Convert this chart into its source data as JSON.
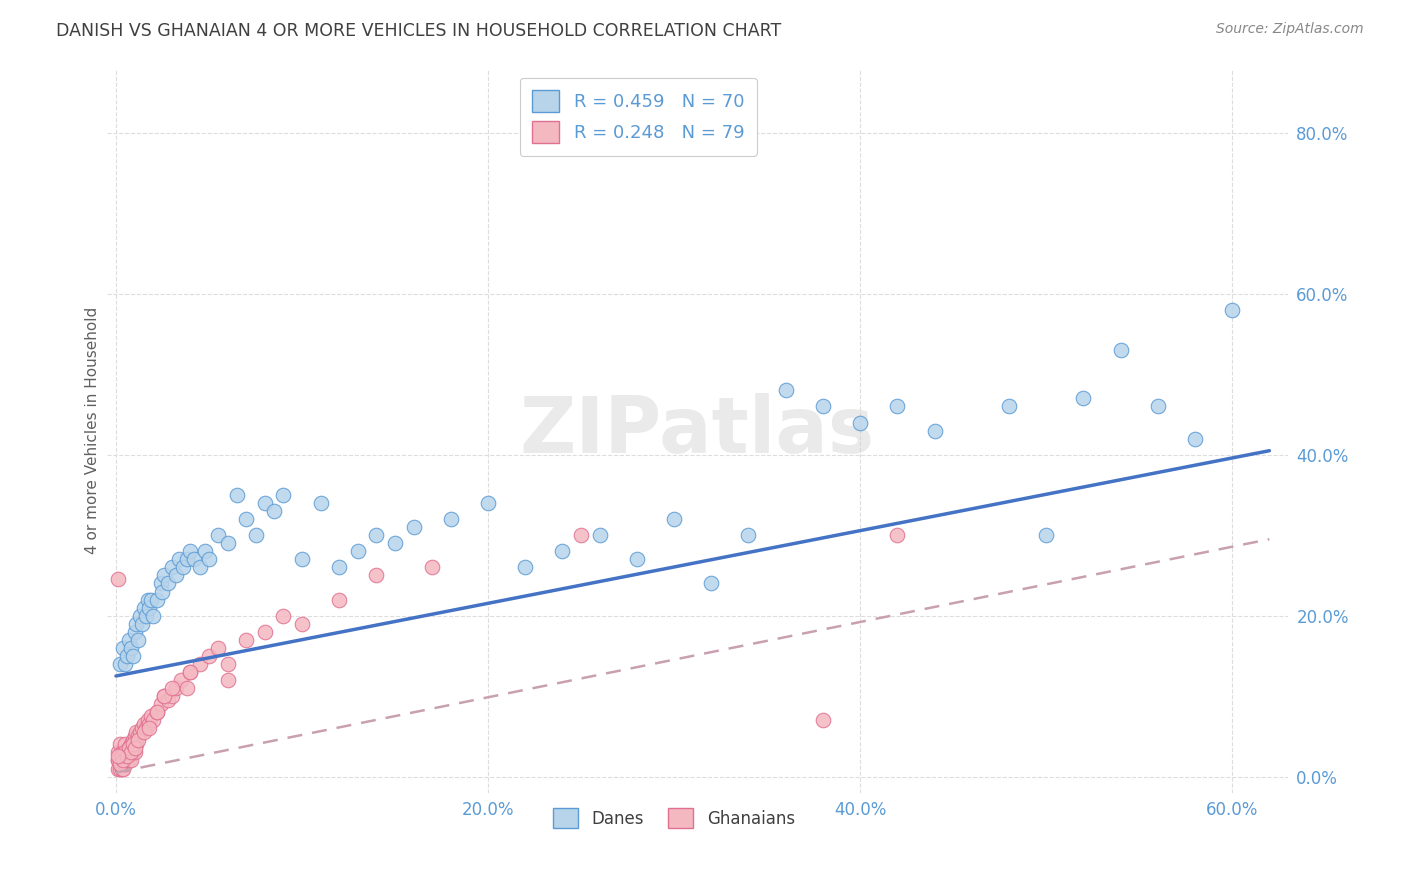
{
  "title": "DANISH VS GHANAIAN 4 OR MORE VEHICLES IN HOUSEHOLD CORRELATION CHART",
  "source": "Source: ZipAtlas.com",
  "ylabel": "4 or more Vehicles in Household",
  "xlim": [
    -0.005,
    0.63
  ],
  "ylim": [
    -0.02,
    0.88
  ],
  "dane_color": "#b8d4ea",
  "dane_edge_color": "#5b9bd5",
  "ghanaian_color": "#f4b8c1",
  "ghanaian_edge_color": "#e07090",
  "dane_line_color": "#4472c4",
  "ghanaian_line_color": "#c0a0a8",
  "dane_R": 0.459,
  "dane_N": 70,
  "ghanaian_R": 0.248,
  "ghanaian_N": 79,
  "watermark": "ZIPatlas",
  "background_color": "#ffffff",
  "grid_color": "#dddddd",
  "title_color": "#404040",
  "tick_color": "#5b9bd5",
  "axis_label_color": "#606060",
  "danes_x": [
    0.002,
    0.004,
    0.005,
    0.006,
    0.007,
    0.008,
    0.009,
    0.01,
    0.011,
    0.012,
    0.013,
    0.014,
    0.015,
    0.016,
    0.017,
    0.018,
    0.019,
    0.02,
    0.022,
    0.024,
    0.025,
    0.026,
    0.028,
    0.03,
    0.032,
    0.034,
    0.036,
    0.038,
    0.04,
    0.042,
    0.045,
    0.048,
    0.05,
    0.055,
    0.06,
    0.065,
    0.07,
    0.075,
    0.08,
    0.085,
    0.09,
    0.1,
    0.11,
    0.12,
    0.13,
    0.14,
    0.15,
    0.16,
    0.18,
    0.2,
    0.22,
    0.24,
    0.26,
    0.28,
    0.3,
    0.32,
    0.34,
    0.36,
    0.38,
    0.4,
    0.42,
    0.44,
    0.48,
    0.5,
    0.52,
    0.54,
    0.56,
    0.58,
    0.005,
    0.6
  ],
  "danes_y": [
    0.14,
    0.16,
    0.14,
    0.15,
    0.17,
    0.16,
    0.15,
    0.18,
    0.19,
    0.17,
    0.2,
    0.19,
    0.21,
    0.2,
    0.22,
    0.21,
    0.22,
    0.2,
    0.22,
    0.24,
    0.23,
    0.25,
    0.24,
    0.26,
    0.25,
    0.27,
    0.26,
    0.27,
    0.28,
    0.27,
    0.26,
    0.28,
    0.27,
    0.3,
    0.29,
    0.35,
    0.32,
    0.3,
    0.34,
    0.33,
    0.35,
    0.27,
    0.34,
    0.26,
    0.28,
    0.3,
    0.29,
    0.31,
    0.32,
    0.34,
    0.26,
    0.28,
    0.3,
    0.27,
    0.32,
    0.24,
    0.3,
    0.48,
    0.46,
    0.44,
    0.46,
    0.43,
    0.46,
    0.3,
    0.47,
    0.53,
    0.46,
    0.42,
    0.025,
    0.58
  ],
  "ghanaians_x": [
    0.001,
    0.001,
    0.001,
    0.002,
    0.002,
    0.002,
    0.003,
    0.003,
    0.003,
    0.004,
    0.004,
    0.004,
    0.005,
    0.005,
    0.005,
    0.006,
    0.006,
    0.007,
    0.007,
    0.008,
    0.008,
    0.009,
    0.009,
    0.01,
    0.01,
    0.011,
    0.011,
    0.012,
    0.013,
    0.014,
    0.015,
    0.016,
    0.017,
    0.018,
    0.019,
    0.02,
    0.022,
    0.024,
    0.026,
    0.028,
    0.03,
    0.032,
    0.035,
    0.038,
    0.04,
    0.045,
    0.05,
    0.055,
    0.06,
    0.07,
    0.08,
    0.09,
    0.1,
    0.12,
    0.14,
    0.001,
    0.002,
    0.003,
    0.004,
    0.005,
    0.006,
    0.007,
    0.008,
    0.009,
    0.01,
    0.012,
    0.015,
    0.018,
    0.022,
    0.026,
    0.03,
    0.04,
    0.001,
    0.001,
    0.06,
    0.17,
    0.25,
    0.38,
    0.42
  ],
  "ghanaians_y": [
    0.01,
    0.02,
    0.03,
    0.01,
    0.02,
    0.04,
    0.01,
    0.02,
    0.03,
    0.01,
    0.02,
    0.03,
    0.015,
    0.025,
    0.04,
    0.02,
    0.03,
    0.02,
    0.035,
    0.02,
    0.04,
    0.03,
    0.045,
    0.03,
    0.05,
    0.04,
    0.055,
    0.05,
    0.055,
    0.06,
    0.065,
    0.06,
    0.07,
    0.065,
    0.075,
    0.07,
    0.08,
    0.09,
    0.1,
    0.095,
    0.1,
    0.11,
    0.12,
    0.11,
    0.13,
    0.14,
    0.15,
    0.16,
    0.14,
    0.17,
    0.18,
    0.2,
    0.19,
    0.22,
    0.25,
    0.02,
    0.015,
    0.025,
    0.02,
    0.03,
    0.025,
    0.035,
    0.03,
    0.04,
    0.035,
    0.045,
    0.055,
    0.06,
    0.08,
    0.1,
    0.11,
    0.13,
    0.025,
    0.245,
    0.12,
    0.26,
    0.3,
    0.07,
    0.3
  ],
  "dane_line_x0": 0.0,
  "dane_line_y0": 0.125,
  "dane_line_x1": 0.62,
  "dane_line_y1": 0.405,
  "ghanaian_line_x0": 0.0,
  "ghanaian_line_y0": 0.005,
  "ghanaian_line_x1": 0.62,
  "ghanaian_line_y1": 0.295
}
